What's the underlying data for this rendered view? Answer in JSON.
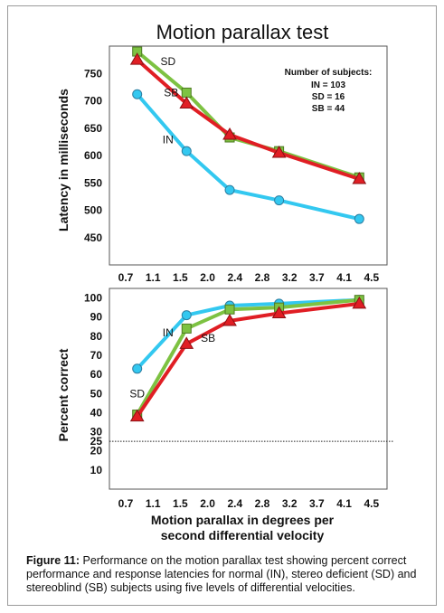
{
  "figure": {
    "caption_label": "Figure 11:",
    "caption_text": " Performance on the motion parallax test showing percent correct performance and response latencies for normal (IN), stereo deficient (SD) and stereoblind (SB) subjects using five levels of differential velocities."
  },
  "colors": {
    "IN": "#33c8f0",
    "SD": "#7dc242",
    "SB": "#e01e24"
  },
  "chart_data": [
    {
      "type": "line",
      "title": "Motion parallax test",
      "ylabel": "Latency in milliseconds",
      "xlabel": "",
      "x_ticks": [
        "0.7",
        "1.1",
        "1.5",
        "2.0",
        "2.4",
        "2.8",
        "3.2",
        "3.7",
        "4.1",
        "4.5"
      ],
      "x_range": [
        0.45,
        4.95
      ],
      "y_ticks": [
        450,
        500,
        550,
        600,
        650,
        700,
        750
      ],
      "ylim": [
        400,
        800
      ],
      "legend": {
        "title": "Number of subjects:",
        "lines": [
          "IN = 103",
          "SD =  16",
          "SB =  44"
        ]
      },
      "series": [
        {
          "name": "SD",
          "marker": "square",
          "x": [
            0.9,
            1.7,
            2.4,
            3.2,
            4.5
          ],
          "y": [
            790,
            715,
            633,
            608,
            560
          ]
        },
        {
          "name": "SB",
          "marker": "triangle",
          "x": [
            0.9,
            1.7,
            2.4,
            3.2,
            4.5
          ],
          "y": [
            775,
            695,
            638,
            605,
            557
          ]
        },
        {
          "name": "IN",
          "marker": "circle",
          "x": [
            0.9,
            1.7,
            2.4,
            3.2,
            4.5
          ],
          "y": [
            712,
            608,
            537,
            518,
            484
          ]
        }
      ],
      "annotations": [
        {
          "text": "SD",
          "x": 1.4,
          "y": 765
        },
        {
          "text": "SB",
          "x": 1.45,
          "y": 708
        },
        {
          "text": "IN",
          "x": 1.4,
          "y": 622
        }
      ]
    },
    {
      "type": "line",
      "title": "",
      "ylabel": "Percent correct",
      "xlabel": "Motion parallax in degrees per second differential velocity",
      "xlabel_lines": [
        "Motion parallax in degrees per",
        "second differential velocity"
      ],
      "x_ticks": [
        "0.7",
        "1.1",
        "1.5",
        "2.0",
        "2.4",
        "2.8",
        "3.2",
        "3.7",
        "4.1",
        "4.5"
      ],
      "x_range": [
        0.45,
        4.95
      ],
      "y_ticks": [
        10,
        20,
        25,
        30,
        40,
        50,
        60,
        70,
        80,
        90,
        100
      ],
      "ylim": [
        0,
        105
      ],
      "chance_level": 25,
      "series": [
        {
          "name": "IN",
          "marker": "circle",
          "x": [
            0.9,
            1.7,
            2.4,
            3.2,
            4.5
          ],
          "y": [
            63,
            91,
            96,
            97,
            99
          ]
        },
        {
          "name": "SD",
          "marker": "square",
          "x": [
            0.9,
            1.7,
            2.4,
            3.2,
            4.5
          ],
          "y": [
            39,
            84,
            94,
            95,
            99
          ]
        },
        {
          "name": "SB",
          "marker": "triangle",
          "x": [
            0.9,
            1.7,
            2.4,
            3.2,
            4.5
          ],
          "y": [
            38,
            76,
            88,
            92,
            97
          ]
        }
      ],
      "annotations": [
        {
          "text": "IN",
          "x": 1.4,
          "y": 80
        },
        {
          "text": "SB",
          "x": 2.05,
          "y": 77
        },
        {
          "text": "SD",
          "x": 0.9,
          "y": 48
        }
      ]
    }
  ]
}
